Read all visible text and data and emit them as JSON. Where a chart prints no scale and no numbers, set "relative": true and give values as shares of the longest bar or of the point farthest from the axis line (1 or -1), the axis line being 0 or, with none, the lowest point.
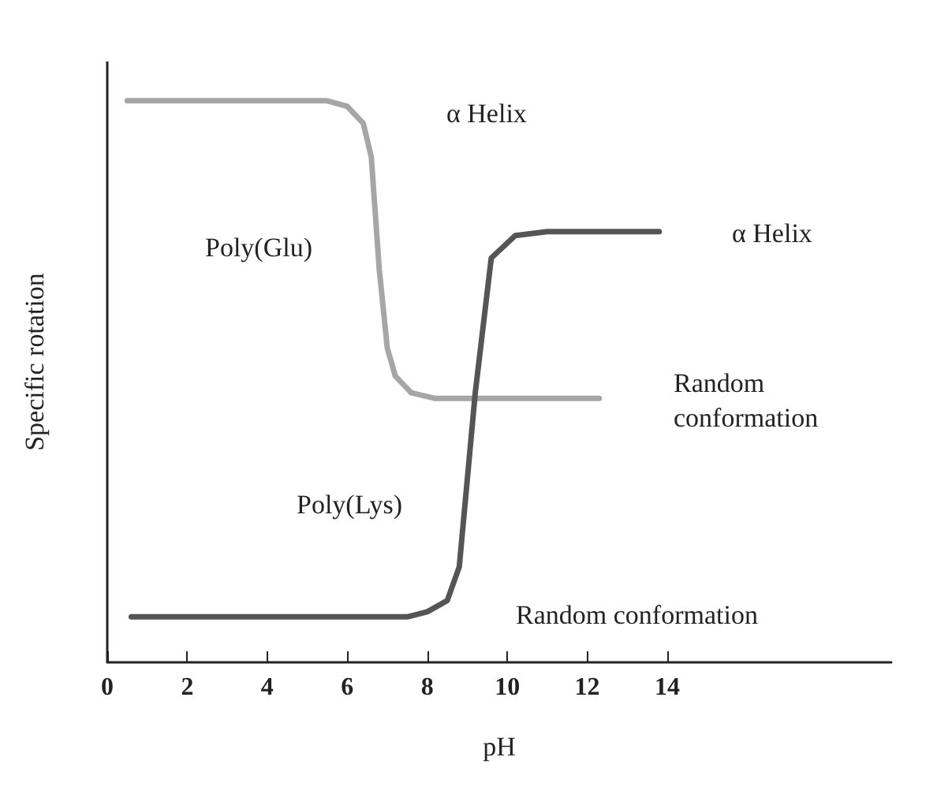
{
  "chart_data": {
    "type": "line",
    "relative": true,
    "xlabel": "pH",
    "ylabel": "Specific rotation",
    "xlim": [
      0,
      19.6
    ],
    "xticks": [
      0,
      2,
      4,
      6,
      8,
      10,
      12,
      14
    ],
    "grid": false,
    "marker": "none",
    "line_style": "solid",
    "series": [
      {
        "color": "#a6a6a6",
        "x": [
          0.5,
          5.5,
          6.0,
          6.4,
          6.6,
          6.8,
          7.0,
          7.2,
          7.6,
          8.2,
          12.3
        ],
        "values": [
          1,
          1,
          0.99,
          0.96,
          0.9,
          0.7,
          0.56,
          0.51,
          0.48,
          0.47,
          0.47
        ]
      },
      {
        "color": "#555555",
        "x": [
          0.6,
          7.5,
          8.0,
          8.5,
          8.8,
          9.2,
          9.6,
          10.2,
          11,
          13.8
        ],
        "values": [
          0.081,
          0.081,
          0.09,
          0.11,
          0.17,
          0.48,
          0.72,
          0.76,
          0.767,
          0.767
        ]
      }
    ],
    "annotations": [
      "α Helix",
      "Poly(Glu)",
      "α Helix",
      "Random\nconformation",
      "Poly(Lys)",
      "Random conformation"
    ]
  }
}
